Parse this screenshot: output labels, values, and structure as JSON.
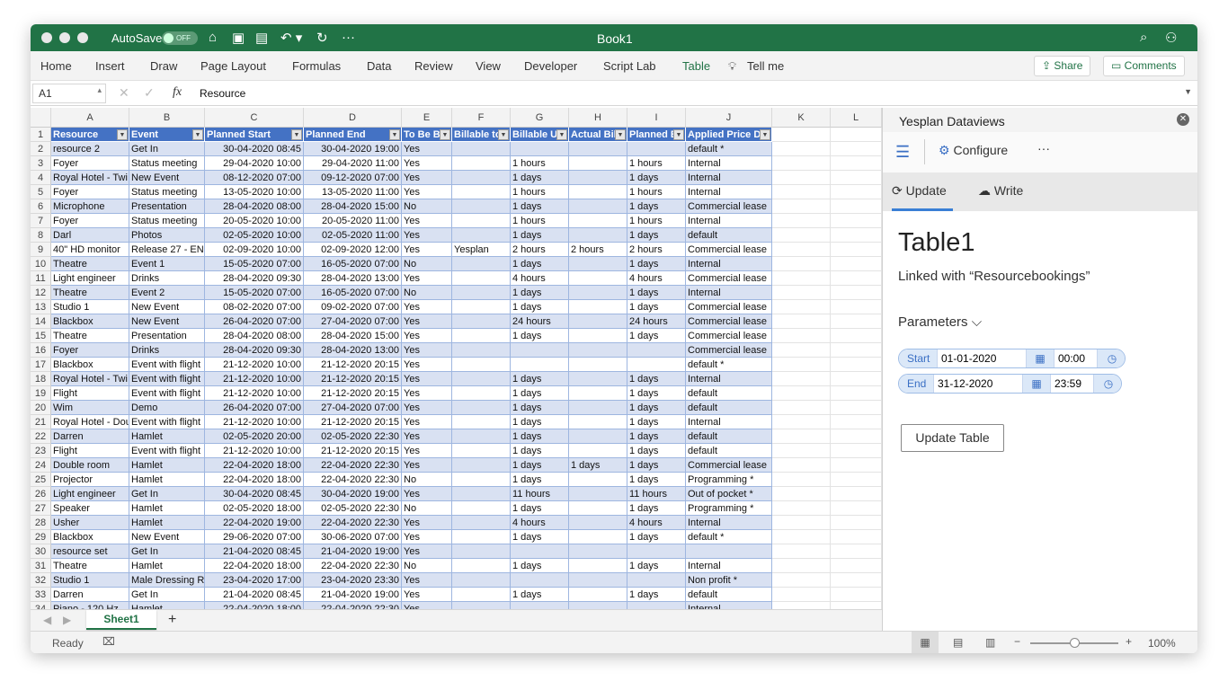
{
  "window": {
    "title": "Book1",
    "autosave_label": "AutoSave",
    "autosave_state": "OFF",
    "accent": "#217346"
  },
  "ribbon": {
    "tabs": [
      "Home",
      "Insert",
      "Draw",
      "Page Layout",
      "Formulas",
      "Data",
      "Review",
      "View",
      "Developer",
      "Script Lab",
      "Table"
    ],
    "active_tab": "Table",
    "tell_me": "Tell me",
    "share": "Share",
    "comments": "Comments"
  },
  "formula_bar": {
    "name_box": "A1",
    "fx": "fx",
    "value": "Resource"
  },
  "grid": {
    "columns": [
      "A",
      "B",
      "C",
      "D",
      "E",
      "F",
      "G",
      "H",
      "I",
      "J",
      "K",
      "L"
    ],
    "headers": [
      "Resource",
      "Event",
      "Planned Start",
      "Planned End",
      "To Be B",
      "Billable to",
      "Billable U",
      "Actual Bil",
      "Planned E",
      "Applied Price D"
    ],
    "rows": [
      [
        "resource 2",
        "Get In",
        "30-04-2020 08:45",
        "30-04-2020 19:00",
        "Yes",
        "",
        "",
        "",
        "",
        "default *"
      ],
      [
        "Foyer",
        "Status meeting",
        "29-04-2020 10:00",
        "29-04-2020 11:00",
        "Yes",
        "",
        "1 hours",
        "",
        "1 hours",
        "Internal"
      ],
      [
        "Royal Hotel - Twi",
        "New Event",
        "08-12-2020 07:00",
        "09-12-2020 07:00",
        "Yes",
        "",
        "1 days",
        "",
        "1 days",
        "Internal"
      ],
      [
        "Foyer",
        "Status meeting",
        "13-05-2020 10:00",
        "13-05-2020 11:00",
        "Yes",
        "",
        "1 hours",
        "",
        "1 hours",
        "Internal"
      ],
      [
        "Microphone",
        "Presentation",
        "28-04-2020 08:00",
        "28-04-2020 15:00",
        "No",
        "",
        "1 days",
        "",
        "1 days",
        "Commercial lease"
      ],
      [
        "Foyer",
        "Status meeting",
        "20-05-2020 10:00",
        "20-05-2020 11:00",
        "Yes",
        "",
        "1 hours",
        "",
        "1 hours",
        "Internal"
      ],
      [
        "Darl",
        "Photos",
        "02-05-2020 10:00",
        "02-05-2020 11:00",
        "Yes",
        "",
        "1 days",
        "",
        "1 days",
        "default"
      ],
      [
        "40\" HD monitor",
        "Release 27 - EN",
        "02-09-2020 10:00",
        "02-09-2020 12:00",
        "Yes",
        "Yesplan",
        "2 hours",
        "2 hours",
        "2 hours",
        "Commercial lease"
      ],
      [
        "Theatre",
        "Event 1",
        "15-05-2020 07:00",
        "16-05-2020 07:00",
        "No",
        "",
        "1 days",
        "",
        "1 days",
        "Internal"
      ],
      [
        "Light engineer",
        "Drinks",
        "28-04-2020 09:30",
        "28-04-2020 13:00",
        "Yes",
        "",
        "4 hours",
        "",
        "4 hours",
        "Commercial lease"
      ],
      [
        "Theatre",
        "Event 2",
        "15-05-2020 07:00",
        "16-05-2020 07:00",
        "No",
        "",
        "1 days",
        "",
        "1 days",
        "Internal"
      ],
      [
        "Studio 1",
        "New Event",
        "08-02-2020 07:00",
        "09-02-2020 07:00",
        "Yes",
        "",
        "1 days",
        "",
        "1 days",
        "Commercial lease"
      ],
      [
        "Blackbox",
        "New Event",
        "26-04-2020 07:00",
        "27-04-2020 07:00",
        "Yes",
        "",
        "24 hours",
        "",
        "24 hours",
        "Commercial lease"
      ],
      [
        "Theatre",
        "Presentation",
        "28-04-2020 08:00",
        "28-04-2020 15:00",
        "Yes",
        "",
        "1 days",
        "",
        "1 days",
        "Commercial lease"
      ],
      [
        "Foyer",
        "Drinks",
        "28-04-2020 09:30",
        "28-04-2020 13:00",
        "Yes",
        "",
        "",
        "",
        "",
        "Commercial lease"
      ],
      [
        "Blackbox",
        "Event with flight",
        "21-12-2020 10:00",
        "21-12-2020 20:15",
        "Yes",
        "",
        "",
        "",
        "",
        "default *"
      ],
      [
        "Royal Hotel - Twi",
        "Event with flight",
        "21-12-2020 10:00",
        "21-12-2020 20:15",
        "Yes",
        "",
        "1 days",
        "",
        "1 days",
        "Internal"
      ],
      [
        "Flight",
        "Event with flight",
        "21-12-2020 10:00",
        "21-12-2020 20:15",
        "Yes",
        "",
        "1 days",
        "",
        "1 days",
        "default"
      ],
      [
        "Wim",
        "Demo",
        "26-04-2020 07:00",
        "27-04-2020 07:00",
        "Yes",
        "",
        "1 days",
        "",
        "1 days",
        "default"
      ],
      [
        "Royal Hotel - Dou",
        "Event with flight",
        "21-12-2020 10:00",
        "21-12-2020 20:15",
        "Yes",
        "",
        "1 days",
        "",
        "1 days",
        "Internal"
      ],
      [
        "Darren",
        "Hamlet",
        "02-05-2020 20:00",
        "02-05-2020 22:30",
        "Yes",
        "",
        "1 days",
        "",
        "1 days",
        "default"
      ],
      [
        "Flight",
        "Event with flight",
        "21-12-2020 10:00",
        "21-12-2020 20:15",
        "Yes",
        "",
        "1 days",
        "",
        "1 days",
        "default"
      ],
      [
        "Double room",
        "Hamlet",
        "22-04-2020 18:00",
        "22-04-2020 22:30",
        "Yes",
        "",
        "1 days",
        "1 days",
        "1 days",
        "Commercial lease"
      ],
      [
        "Projector",
        "Hamlet",
        "22-04-2020 18:00",
        "22-04-2020 22:30",
        "No",
        "",
        "1 days",
        "",
        "1 days",
        "Programming *"
      ],
      [
        "Light engineer",
        "Get In",
        "30-04-2020 08:45",
        "30-04-2020 19:00",
        "Yes",
        "",
        "11 hours",
        "",
        "11 hours",
        "Out of pocket *"
      ],
      [
        "Speaker",
        "Hamlet",
        "02-05-2020 18:00",
        "02-05-2020 22:30",
        "No",
        "",
        "1 days",
        "",
        "1 days",
        "Programming *"
      ],
      [
        "Usher",
        "Hamlet",
        "22-04-2020 19:00",
        "22-04-2020 22:30",
        "Yes",
        "",
        "4 hours",
        "",
        "4 hours",
        "Internal"
      ],
      [
        "Blackbox",
        "New Event",
        "29-06-2020 07:00",
        "30-06-2020 07:00",
        "Yes",
        "",
        "1 days",
        "",
        "1 days",
        "default *"
      ],
      [
        "resource set",
        "Get In",
        "21-04-2020 08:45",
        "21-04-2020 19:00",
        "Yes",
        "",
        "",
        "",
        "",
        ""
      ],
      [
        "Theatre",
        "Hamlet",
        "22-04-2020 18:00",
        "22-04-2020 22:30",
        "No",
        "",
        "1 days",
        "",
        "1 days",
        "Internal"
      ],
      [
        "Studio 1",
        "Male Dressing R",
        "23-04-2020 17:00",
        "23-04-2020 23:30",
        "Yes",
        "",
        "",
        "",
        "",
        "Non profit *"
      ],
      [
        "Darren",
        "Get In",
        "21-04-2020 08:45",
        "21-04-2020 19:00",
        "Yes",
        "",
        "1 days",
        "",
        "1 days",
        "default"
      ],
      [
        "Piano - 120 Hz",
        "Hamlet",
        "22-04-2020 18:00",
        "22-04-2020 22:30",
        "Yes",
        "",
        "",
        "",
        "",
        "Internal"
      ]
    ]
  },
  "sheets": {
    "tabs": [
      "Sheet1"
    ],
    "add": "+"
  },
  "status": {
    "ready": "Ready",
    "zoom": "100%",
    "zoom_minus": "−",
    "zoom_plus": "+",
    "zoom_level_percent": 100
  },
  "panel": {
    "title": "Yesplan Dataviews",
    "configure": "Configure",
    "more": "···",
    "tabs": [
      "Update",
      "Write"
    ],
    "active_tab": "Update",
    "table_name": "Table1",
    "linked": "Linked with “Resourcebookings”",
    "parameters": "Parameters",
    "start": {
      "label": "Start",
      "date": "01-01-2020",
      "time": "00:00"
    },
    "end": {
      "label": "End",
      "date": "31-12-2020",
      "time": "23:59"
    },
    "update_button": "Update Table"
  }
}
